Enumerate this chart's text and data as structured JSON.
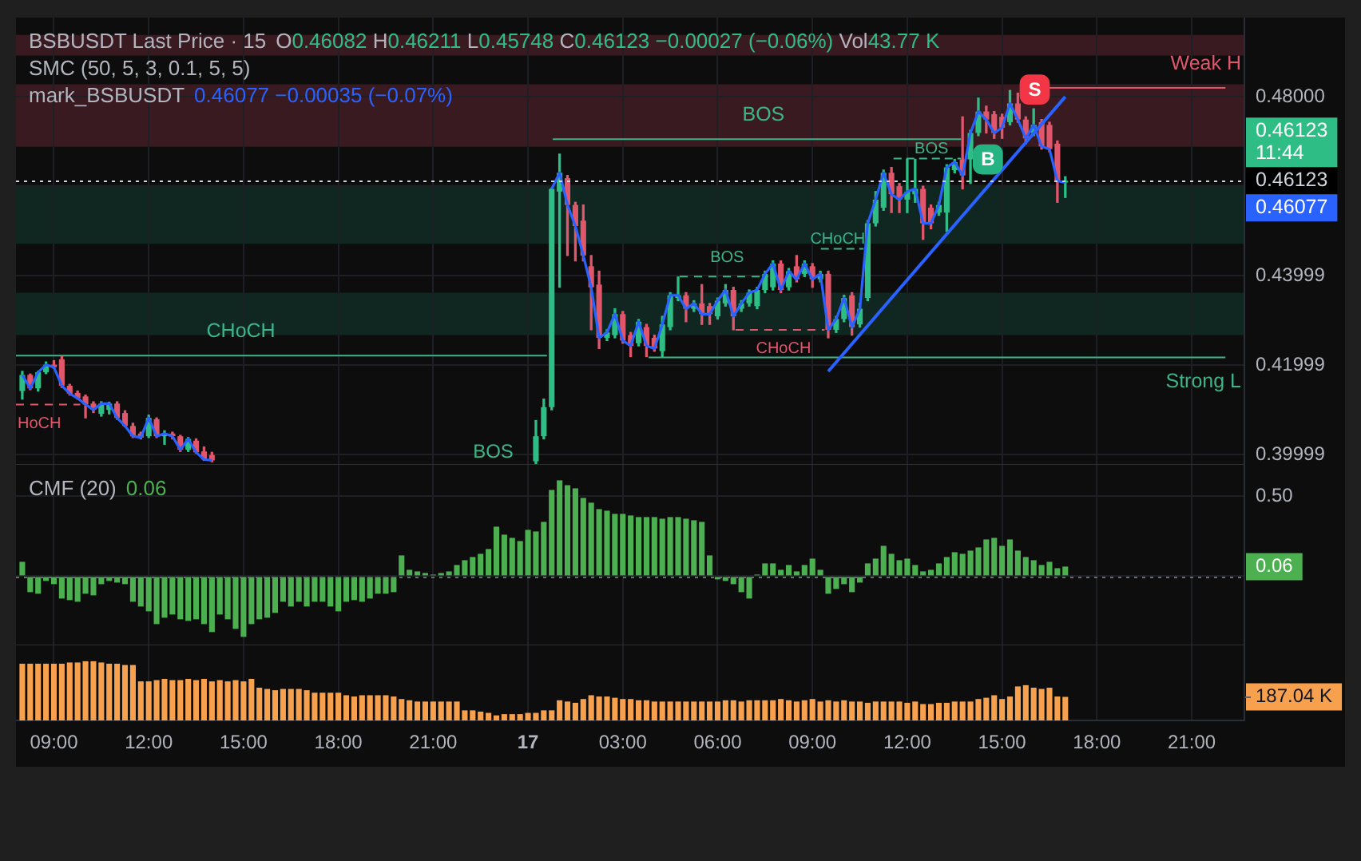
{
  "chart_data": [
    {
      "type": "candlestick",
      "title": "BSBUSDT Last Price · 15",
      "subtitle": "SMC (50, 5, 3, 0.1, 5, 5)",
      "annotations": [
        "O0.46082 H0.46211 L0.45748 C0.46123 −0.00027 (−0.06%) Vol43.77 K",
        "mark_BSBUSDT",
        "0.46077 −0.00035 (−0.07%)",
        "11:44",
        "BOS",
        "0.46123",
        "0.46077",
        {
          "text": "CHoCH",
          "x": "--06-16T14:55",
          "y": 0.4221
        },
        {
          "text": "HoCH",
          "x": "--06-16T08:29",
          "y": 0.4112
        },
        {
          "text": "BOS",
          "x": "--06-17T07:27",
          "y": 0.4705
        },
        {
          "text": "BOS",
          "x": "--06-17T12:46",
          "y": 0.4662
        },
        {
          "text": "BOS",
          "x": "--06-17T06:18",
          "y": 0.4398
        },
        {
          "text": "CHoCH",
          "x": "--06-17T08:05",
          "y": 0.4279
        },
        {
          "text": "CHoCH",
          "x": "--06-17T09:48",
          "y": 0.446
        },
        {
          "text": "Weak H",
          "x": "--06-17T21:38",
          "y": 0.482
        },
        {
          "text": "Strong L",
          "x": "--06-17T21:37",
          "y": 0.4217
        }
      ],
      "x": [
        "--06-16T08:00",
        "--06-16T08:15",
        "--06-16T08:30",
        "--06-16T08:45",
        "--06-16T09:00",
        "--06-16T09:15",
        "--06-16T09:30",
        "--06-16T09:45",
        "--06-16T10:00",
        "--06-16T10:15",
        "--06-16T10:30",
        "--06-16T10:45",
        "--06-16T11:00",
        "--06-16T11:15",
        "--06-16T11:30",
        "--06-16T11:45",
        "--06-16T12:00",
        "--06-16T12:15",
        "--06-16T12:30",
        "--06-16T12:45",
        "--06-16T13:00",
        "--06-16T13:15",
        "--06-16T13:30",
        "--06-16T13:45",
        "--06-16T14:00",
        "--06-16T14:15",
        "--06-16T14:30",
        "--06-16T14:45",
        "--06-16T15:00",
        "--06-16T15:15",
        "--06-16T15:30",
        "--06-16T15:45",
        "--06-16T16:00",
        "--06-16T16:15",
        "--06-16T16:30",
        "--06-16T16:45",
        "--06-16T17:00",
        "--06-16T17:15",
        "--06-16T17:30",
        "--06-16T17:45",
        "--06-16T18:00",
        "--06-16T18:15",
        "--06-16T18:30",
        "--06-16T18:45",
        "--06-16T19:00",
        "--06-16T19:15",
        "--06-16T19:30",
        "--06-16T19:45",
        "--06-16T20:00",
        "--06-16T20:15",
        "--06-16T20:30",
        "--06-16T20:45",
        "--06-16T21:00",
        "--06-16T21:15",
        "--06-16T21:30",
        "--06-16T21:45",
        "--06-16T22:00",
        "--06-16T22:15",
        "--06-16T22:30",
        "--06-16T22:45",
        "--06-16T23:00",
        "--06-16T23:15",
        "--06-16T23:30",
        "--06-16T23:45",
        "--06-17T00:00",
        "--06-17T00:15",
        "--06-17T00:30",
        "--06-17T00:45",
        "--06-17T01:00",
        "--06-17T01:15",
        "--06-17T01:30",
        "--06-17T01:45",
        "--06-17T02:00",
        "--06-17T02:15",
        "--06-17T02:30",
        "--06-17T02:45",
        "--06-17T03:00",
        "--06-17T03:15",
        "--06-17T03:30",
        "--06-17T03:45",
        "--06-17T04:00",
        "--06-17T04:15",
        "--06-17T04:30",
        "--06-17T04:45",
        "--06-17T05:00",
        "--06-17T05:15",
        "--06-17T05:30",
        "--06-17T05:45",
        "--06-17T06:00",
        "--06-17T06:15",
        "--06-17T06:30",
        "--06-17T06:45",
        "--06-17T07:00",
        "--06-17T07:15",
        "--06-17T07:30",
        "--06-17T07:45",
        "--06-17T08:00",
        "--06-17T08:15",
        "--06-17T08:30",
        "--06-17T08:45",
        "--06-17T09:00",
        "--06-17T09:15",
        "--06-17T09:30",
        "--06-17T09:45",
        "--06-17T10:00",
        "--06-17T10:15",
        "--06-17T10:30",
        "--06-17T10:45",
        "--06-17T11:00",
        "--06-17T11:15",
        "--06-17T11:30",
        "--06-17T11:45",
        "--06-17T12:00",
        "--06-17T12:15",
        "--06-17T12:30",
        "--06-17T12:45",
        "--06-17T13:00",
        "--06-17T13:15",
        "--06-17T13:30",
        "--06-17T13:45",
        "--06-17T14:00",
        "--06-17T14:15",
        "--06-17T14:30",
        "--06-17T14:45",
        "--06-17T15:00",
        "--06-17T15:15",
        "--06-17T15:30",
        "--06-17T15:45",
        "--06-17T16:00",
        "--06-17T16:15",
        "--06-17T16:30",
        "--06-17T16:45",
        "--06-17T17:00"
      ],
      "ohlc": [
        [
          0.4142,
          0.4186,
          0.4124,
          0.4178
        ],
        [
          0.4178,
          0.418,
          0.4145,
          0.4148
        ],
        [
          0.4148,
          0.4186,
          0.4142,
          0.4184
        ],
        [
          0.4184,
          0.4207,
          0.4181,
          0.4201
        ],
        [
          0.4201,
          0.421,
          0.4193,
          0.4195
        ],
        [
          0.4213,
          0.4219,
          0.415,
          0.4154
        ],
        [
          0.4154,
          0.4157,
          0.4133,
          0.4136
        ],
        [
          0.4138,
          0.4142,
          0.4124,
          0.4126
        ],
        [
          0.413,
          0.4133,
          0.4082,
          0.4112
        ],
        [
          0.4114,
          0.4118,
          0.4094,
          0.41
        ],
        [
          0.4091,
          0.4118,
          0.4086,
          0.4114
        ],
        [
          0.41,
          0.4117,
          0.4091,
          0.4114
        ],
        [
          0.4114,
          0.4118,
          0.4079,
          0.4082
        ],
        [
          0.4093,
          0.4098,
          0.4062,
          0.4064
        ],
        [
          0.4064,
          0.407,
          0.4038,
          0.4041
        ],
        [
          0.4047,
          0.405,
          0.4035,
          0.4038
        ],
        [
          0.4041,
          0.4088,
          0.4038,
          0.4082
        ],
        [
          0.4079,
          0.4082,
          0.4038,
          0.4041
        ],
        [
          0.4041,
          0.4053,
          0.4023,
          0.4047
        ],
        [
          0.4047,
          0.405,
          0.4035,
          0.4041
        ],
        [
          0.4041,
          0.4043,
          0.4007,
          0.4011
        ],
        [
          0.4011,
          0.4038,
          0.4007,
          0.4035
        ],
        [
          0.4031,
          0.4035,
          0.4003,
          0.4005
        ],
        [
          0.4007,
          0.4017,
          0.3987,
          0.3989
        ],
        [
          0.3999,
          0.4005,
          0.3984,
          0.3987
        ],
        null,
        null,
        null,
        null,
        null,
        null,
        null,
        null,
        null,
        null,
        null,
        null,
        null,
        null,
        null,
        null,
        null,
        null,
        null,
        null,
        null,
        null,
        null,
        null,
        null,
        null,
        null,
        null,
        null,
        null,
        null,
        null,
        null,
        null,
        null,
        null,
        null,
        null,
        null,
        null,
        [
          0.3985,
          0.4076,
          0.398,
          0.4041
        ],
        [
          0.4041,
          0.4124,
          0.4035,
          0.4106
        ],
        [
          0.4106,
          0.4596,
          0.41,
          0.4594
        ],
        [
          0.4588,
          0.4672,
          0.4374,
          0.463
        ],
        [
          0.4618,
          0.4624,
          0.4445,
          0.4558
        ],
        [
          0.4558,
          0.4564,
          0.4433,
          0.4511
        ],
        [
          0.4523,
          0.4558,
          0.4433,
          0.4445
        ],
        [
          0.4421,
          0.4445,
          0.4279,
          0.4374
        ],
        [
          0.438,
          0.441,
          0.4237,
          0.4261
        ],
        [
          0.4261,
          0.4279,
          0.4255,
          0.4273
        ],
        [
          0.4267,
          0.4326,
          0.4261,
          0.4314
        ],
        [
          0.4314,
          0.432,
          0.4249,
          0.4255
        ],
        [
          0.4267,
          0.4273,
          0.4219,
          0.4243
        ],
        [
          0.4249,
          0.4302,
          0.4243,
          0.4297
        ],
        [
          0.4285,
          0.4291,
          0.4219,
          0.4243
        ],
        [
          0.4261,
          0.4267,
          0.4231,
          0.4237
        ],
        [
          0.4231,
          0.4309,
          0.4219,
          0.4291
        ],
        [
          0.4285,
          0.4362,
          0.4279,
          0.4356
        ],
        [
          0.435,
          0.4397,
          0.4344,
          0.4356
        ],
        [
          0.4356,
          0.4362,
          0.4297,
          0.4326
        ],
        [
          0.4326,
          0.4344,
          0.432,
          0.4338
        ],
        [
          0.4338,
          0.438,
          0.4291,
          0.4314
        ],
        [
          0.4332,
          0.4338,
          0.4291,
          0.4314
        ],
        [
          0.4309,
          0.435,
          0.4303,
          0.4344
        ],
        [
          0.4338,
          0.438,
          0.4332,
          0.4368
        ],
        [
          0.4368,
          0.4374,
          0.4279,
          0.4309
        ],
        [
          0.4326,
          0.4344,
          0.432,
          0.4338
        ],
        [
          0.4338,
          0.4368,
          0.4332,
          0.4362
        ],
        [
          0.4332,
          0.4374,
          0.4326,
          0.4368
        ],
        [
          0.4368,
          0.441,
          0.4362,
          0.4404
        ],
        [
          0.4374,
          0.4433,
          0.4368,
          0.4427
        ],
        [
          0.4427,
          0.4433,
          0.4362,
          0.4368
        ],
        [
          0.4374,
          0.4416,
          0.4368,
          0.441
        ],
        [
          0.4421,
          0.4445,
          0.4386,
          0.4392
        ],
        [
          0.4404,
          0.4433,
          0.4398,
          0.4427
        ],
        [
          0.4421,
          0.4427,
          0.4374,
          0.4392
        ],
        [
          0.4392,
          0.441,
          0.4386,
          0.4404
        ],
        [
          0.4404,
          0.441,
          0.4261,
          0.4279
        ],
        [
          0.4279,
          0.4309,
          0.4273,
          0.4303
        ],
        [
          0.4303,
          0.4356,
          0.4297,
          0.435
        ],
        [
          0.4356,
          0.4362,
          0.4267,
          0.4285
        ],
        [
          0.4291,
          0.4338,
          0.4285,
          0.4326
        ],
        [
          0.435,
          0.4523,
          0.4344,
          0.4517
        ],
        [
          0.4517,
          0.4588,
          0.4511,
          0.457
        ],
        [
          0.4552,
          0.4636,
          0.4546,
          0.463
        ],
        [
          0.463,
          0.4642,
          0.4541,
          0.4582
        ],
        [
          0.46,
          0.4606,
          0.4541,
          0.457
        ],
        [
          0.457,
          0.466,
          0.4541,
          0.4588
        ],
        [
          0.4582,
          0.466,
          0.4564,
          0.4594
        ],
        [
          0.4594,
          0.46,
          0.4481,
          0.4517
        ],
        [
          0.4552,
          0.4558,
          0.4505,
          0.4517
        ],
        [
          0.4541,
          0.4564,
          0.4535,
          0.4558
        ],
        [
          0.4541,
          0.4648,
          0.4499,
          0.4642
        ],
        [
          0.4636,
          0.466,
          0.463,
          0.4654
        ],
        [
          0.466,
          0.4755,
          0.4594,
          0.4624
        ],
        [
          0.466,
          0.4725,
          0.4606,
          0.4719
        ],
        [
          0.4719,
          0.4797,
          0.4713,
          0.4767
        ],
        [
          0.4767,
          0.4779,
          0.4719,
          0.4749
        ],
        [
          0.4761,
          0.4767,
          0.4707,
          0.4719
        ],
        [
          0.4755,
          0.4761,
          0.4707,
          0.4731
        ],
        [
          0.4743,
          0.4814,
          0.4737,
          0.4785
        ],
        [
          0.4785,
          0.4808,
          0.4743,
          0.4749
        ],
        [
          0.4749,
          0.4755,
          0.4695,
          0.4707
        ],
        [
          0.4719,
          0.4773,
          0.4713,
          0.4737
        ],
        [
          0.4743,
          0.4749,
          0.4683,
          0.4689
        ],
        [
          0.4737,
          0.4743,
          0.4677,
          0.4683
        ],
        [
          0.4695,
          0.4701,
          0.4564,
          0.4612
        ],
        [
          0.46082,
          0.46211,
          0.45748,
          0.46123
        ]
      ],
      "colors": [
        "#2ebd85",
        "#e0566b",
        "#2ebd85",
        "#2ebd85",
        "#e0566b",
        "#e0566b",
        "#e0566b",
        "#e0566b",
        "#e0566b",
        "#e0566b",
        "#2ebd85",
        "#2ebd85",
        "#e0566b",
        "#e0566b",
        "#e0566b",
        "#e0566b",
        "#2ebd85",
        "#e0566b",
        "#2ebd85",
        "#e0566b",
        "#e0566b",
        "#2ebd85",
        "#e0566b",
        "#e0566b",
        "#e0566b",
        null,
        null,
        null,
        null,
        null,
        null,
        null,
        null,
        null,
        null,
        null,
        null,
        null,
        null,
        null,
        null,
        null,
        null,
        null,
        null,
        null,
        null,
        null,
        null,
        null,
        null,
        null,
        null,
        null,
        null,
        null,
        null,
        null,
        null,
        null,
        null,
        null,
        null,
        null,
        null,
        "#2ebd85",
        "#2ebd85",
        "#2ebd85",
        "#2ebd85",
        "#e0566b",
        "#e0566b",
        "#e0566b",
        "#e0566b",
        "#e0566b",
        "#2ebd85",
        "#2ebd85",
        "#e0566b",
        "#e0566b",
        "#2ebd85",
        "#e0566b",
        "#e0566b",
        "#2ebd85",
        "#2ebd85",
        "#2ebd85",
        "#e0566b",
        "#2ebd85",
        "#e0566b",
        "#e0566b",
        "#2ebd85",
        "#2ebd85",
        "#e0566b",
        "#2ebd85",
        "#2ebd85",
        "#2ebd85",
        "#2ebd85",
        "#2ebd85",
        "#e0566b",
        "#2ebd85",
        "#e0566b",
        "#2ebd85",
        "#e0566b",
        "#2ebd85",
        "#e0566b",
        "#2ebd85",
        "#2ebd85",
        "#e0566b",
        "#2ebd85",
        "#2ebd85",
        "#2ebd85",
        "#2ebd85",
        "#e0566b",
        "#e0566b",
        "#2ebd85",
        "#2ebd85",
        "#e0566b",
        "#e0566b",
        "#2ebd85",
        "#2ebd85",
        "#2ebd85",
        "#e0566b",
        "#2ebd85",
        "#2ebd85",
        "#e0566b",
        "#e0566b",
        "#e0566b",
        "#2ebd85",
        "#e0566b",
        "#e0566b",
        "#2ebd85",
        "#e0566b",
        "#e0566b",
        "#e0566b",
        "#2ebd85"
      ],
      "series": [
        {
          "type": "line",
          "x": [
            "--06-16T07:48",
            "--06-17T00:36"
          ],
          "values": [
            0.4221,
            0.4221
          ],
          "color": "#3eb489",
          "line_style": "solid"
        },
        {
          "type": "line",
          "x": [
            "--06-16T07:48",
            "--06-16T09:50"
          ],
          "values": [
            0.4112,
            0.4112
          ],
          "color": "#e0566b",
          "line_style": "dashed"
        },
        {
          "type": "line",
          "x": [
            "--06-17T00:47",
            "--06-17T13:42"
          ],
          "values": [
            0.4705,
            0.4705
          ],
          "color": "#3eb489",
          "line_style": "solid"
        },
        {
          "type": "line",
          "x": [
            "--06-17T11:34",
            "--06-17T13:42"
          ],
          "values": [
            0.4662,
            0.4662
          ],
          "color": "#3eb489",
          "line_style": "dashed"
        },
        {
          "type": "line",
          "x": [
            "--06-17T04:48",
            "--06-17T07:36"
          ],
          "values": [
            0.4398,
            0.4398
          ],
          "color": "#3eb489",
          "line_style": "dashed"
        },
        {
          "type": "line",
          "x": [
            "--06-17T06:34",
            "--06-17T09:23"
          ],
          "values": [
            0.4279,
            0.4279
          ],
          "color": "#e0566b",
          "line_style": "dashed"
        },
        {
          "type": "line",
          "x": [
            "--06-17T09:16",
            "--06-17T10:37"
          ],
          "values": [
            0.446,
            0.446
          ],
          "color": "#3eb489",
          "line_style": "dashed"
        },
        {
          "type": "line",
          "x": [
            "--06-17T16:29",
            "--06-17T22:04"
          ],
          "values": [
            0.482,
            0.482
          ],
          "color": "#e0566b",
          "line_style": "solid"
        },
        {
          "type": "line",
          "x": [
            "--06-17T03:49",
            "--06-17T22:04"
          ],
          "values": [
            0.4217,
            0.4217
          ],
          "color": "#3eb489",
          "line_style": "solid"
        },
        {
          "type": "line",
          "x": [
            "--06-17T09:30",
            "--06-17T17:00"
          ],
          "values": [
            0.4186,
            0.48
          ],
          "color": "#2962ff",
          "line_style": "solid"
        },
        {
          "type": "line",
          "color": "#2962ff",
          "values": [
            0.4178,
            0.4148,
            0.4184,
            0.4201,
            0.4195,
            0.4154,
            0.4136,
            0.4126,
            0.4112,
            0.41,
            0.4114,
            0.4114,
            0.4082,
            0.4064,
            0.4041,
            0.4038,
            0.4082,
            0.4041,
            0.4047,
            0.4041,
            0.4011,
            0.4035,
            0.4005,
            0.3989,
            0.3987,
            null,
            null,
            null,
            null,
            null,
            null,
            null,
            null,
            null,
            null,
            null,
            null,
            null,
            null,
            null,
            null,
            null,
            null,
            null,
            null,
            null,
            null,
            null,
            null,
            null,
            null,
            null,
            null,
            null,
            null,
            null,
            null,
            null,
            null,
            null,
            null,
            null,
            null,
            null,
            null,
            null,
            null,
            0.4594,
            0.463,
            0.4558,
            0.4511,
            0.4445,
            0.4374,
            0.4261,
            0.4273,
            0.4314,
            0.4255,
            0.4243,
            0.4297,
            0.4243,
            0.4237,
            0.4291,
            0.4356,
            0.4356,
            0.4326,
            0.4338,
            0.4314,
            0.4314,
            0.4344,
            0.4368,
            0.4309,
            0.4338,
            0.4362,
            0.4368,
            0.4404,
            0.4427,
            0.4368,
            0.441,
            0.4392,
            0.4427,
            0.4392,
            0.4404,
            0.4279,
            0.4303,
            0.435,
            0.4285,
            0.4326,
            0.4517,
            0.457,
            0.463,
            0.4582,
            0.457,
            0.4588,
            0.4594,
            0.4517,
            0.4517,
            0.4558,
            0.4642,
            0.4654,
            0.4624,
            0.4719,
            0.4767,
            0.4749,
            0.4719,
            0.4731,
            0.4785,
            0.4749,
            0.4707,
            0.4737,
            0.4689,
            0.4683,
            0.4612,
            0.46077
          ]
        },
        {
          "type": "scatter",
          "x": [
            "--06-17T14:33"
          ],
          "values": [
            0.466
          ],
          "color": "#26b382",
          "marker": "square",
          "value_labels": [
            "B"
          ]
        },
        {
          "type": "scatter",
          "x": [
            "--06-17T16:02"
          ],
          "values": [
            0.4816
          ],
          "color": "#f23645",
          "marker": "square",
          "value_labels": [
            "S"
          ]
        }
      ],
      "bands": [
        {
          "axis": "y",
          "from": 0.4892,
          "to": 0.4938,
          "color": "#3a1a21"
        },
        {
          "axis": "y",
          "from": 0.4688,
          "to": 0.4828,
          "color": "#3a1a21"
        },
        {
          "axis": "y",
          "from": 0.4471,
          "to": 0.4603,
          "color": "#0f2621"
        },
        {
          "axis": "y",
          "from": 0.4267,
          "to": 0.4362,
          "color": "#0f2621"
        }
      ],
      "ref_lines": [
        {
          "axis": "y",
          "value": 0.46123,
          "label": "0.46123",
          "line_style": "dotted",
          "color": "#d1d4dc"
        }
      ],
      "xlim": [
        "--06-16T07:48",
        "--06-17T22:40"
      ],
      "xticks": [
        {
          "value": "--06-16T09:00",
          "label": "09:00"
        },
        {
          "value": "--06-16T12:00",
          "label": "12:00"
        },
        {
          "value": "--06-16T15:00",
          "label": "15:00"
        },
        {
          "value": "--06-16T18:00",
          "label": "18:00"
        },
        {
          "value": "--06-16T21:00",
          "label": "21:00"
        },
        {
          "value": "--06-17",
          "label": "17"
        },
        {
          "value": "--06-17T03:00",
          "label": "03:00"
        },
        {
          "value": "--06-17T06:00",
          "label": "06:00"
        },
        {
          "value": "--06-17T09:00",
          "label": "09:00"
        },
        {
          "value": "--06-17T12:00",
          "label": "12:00"
        },
        {
          "value": "--06-17T15:00",
          "label": "15:00"
        },
        {
          "value": "--06-17T18:00",
          "label": "18:00"
        },
        {
          "value": "--06-17T21:00",
          "label": "21:00"
        }
      ],
      "ylim": [
        0.3977,
        0.4977
      ],
      "yticks": [
        {
          "value": 0.48,
          "label": "0.48000"
        },
        {
          "value": 0.46,
          "label": null
        },
        {
          "value": 0.43999,
          "label": "0.43999"
        },
        {
          "value": 0.41999,
          "label": "0.41999"
        },
        {
          "value": 0.39999,
          "label": "0.39999"
        }
      ],
      "grid": true,
      "tick_labels": "y"
    },
    {
      "type": "bar",
      "title": "CMF (20)",
      "color": "#4caf50",
      "annotations": [
        "0.06"
      ],
      "x": [
        "--06-16T08:00",
        "--06-16T08:15",
        "--06-16T08:30",
        "--06-16T08:45",
        "--06-16T09:00",
        "--06-16T09:15",
        "--06-16T09:30",
        "--06-16T09:45",
        "--06-16T10:00",
        "--06-16T10:15",
        "--06-16T10:30",
        "--06-16T10:45",
        "--06-16T11:00",
        "--06-16T11:15",
        "--06-16T11:30",
        "--06-16T11:45",
        "--06-16T12:00",
        "--06-16T12:15",
        "--06-16T12:30",
        "--06-16T12:45",
        "--06-16T13:00",
        "--06-16T13:15",
        "--06-16T13:30",
        "--06-16T13:45",
        "--06-16T14:00",
        "--06-16T14:15",
        "--06-16T14:30",
        "--06-16T14:45",
        "--06-16T15:00",
        "--06-16T15:15",
        "--06-16T15:30",
        "--06-16T15:45",
        "--06-16T16:00",
        "--06-16T16:15",
        "--06-16T16:30",
        "--06-16T16:45",
        "--06-16T17:00",
        "--06-16T17:15",
        "--06-16T17:30",
        "--06-16T17:45",
        "--06-16T18:00",
        "--06-16T18:15",
        "--06-16T18:30",
        "--06-16T18:45",
        "--06-16T19:00",
        "--06-16T19:15",
        "--06-16T19:30",
        "--06-16T19:45",
        "--06-16T20:00",
        "--06-16T20:15",
        "--06-16T20:30",
        "--06-16T20:45",
        "--06-16T21:00",
        "--06-16T21:15",
        "--06-16T21:30",
        "--06-16T21:45",
        "--06-16T22:00",
        "--06-16T22:15",
        "--06-16T22:30",
        "--06-16T22:45",
        "--06-16T23:00",
        "--06-16T23:15",
        "--06-16T23:30",
        "--06-16T23:45",
        "--06-17T00:00",
        "--06-17T00:15",
        "--06-17T00:30",
        "--06-17T00:45",
        "--06-17T01:00",
        "--06-17T01:15",
        "--06-17T01:30",
        "--06-17T01:45",
        "--06-17T02:00",
        "--06-17T02:15",
        "--06-17T02:30",
        "--06-17T02:45",
        "--06-17T03:00",
        "--06-17T03:15",
        "--06-17T03:30",
        "--06-17T03:45",
        "--06-17T04:00",
        "--06-17T04:15",
        "--06-17T04:30",
        "--06-17T04:45",
        "--06-17T05:00",
        "--06-17T05:15",
        "--06-17T05:30",
        "--06-17T05:45",
        "--06-17T06:00",
        "--06-17T06:15",
        "--06-17T06:30",
        "--06-17T06:45",
        "--06-17T07:00",
        "--06-17T07:15",
        "--06-17T07:30",
        "--06-17T07:45",
        "--06-17T08:00",
        "--06-17T08:15",
        "--06-17T08:30",
        "--06-17T08:45",
        "--06-17T09:00",
        "--06-17T09:15",
        "--06-17T09:30",
        "--06-17T09:45",
        "--06-17T10:00",
        "--06-17T10:15",
        "--06-17T10:30",
        "--06-17T10:45",
        "--06-17T11:00",
        "--06-17T11:15",
        "--06-17T11:30",
        "--06-17T11:45",
        "--06-17T12:00",
        "--06-17T12:15",
        "--06-17T12:30",
        "--06-17T12:45",
        "--06-17T13:00",
        "--06-17T13:15",
        "--06-17T13:30",
        "--06-17T13:45",
        "--06-17T14:00",
        "--06-17T14:15",
        "--06-17T14:30",
        "--06-17T14:45",
        "--06-17T15:00",
        "--06-17T15:15",
        "--06-17T15:30",
        "--06-17T15:45",
        "--06-17T16:00",
        "--06-17T16:15",
        "--06-17T16:30",
        "--06-17T16:45",
        "--06-17T17:00"
      ],
      "values": [
        0.09,
        -0.1,
        -0.11,
        -0.03,
        -0.05,
        -0.14,
        -0.15,
        -0.16,
        -0.11,
        -0.12,
        -0.05,
        -0.03,
        -0.04,
        -0.05,
        -0.16,
        -0.19,
        -0.22,
        -0.3,
        -0.26,
        -0.24,
        -0.27,
        -0.28,
        -0.27,
        -0.3,
        -0.35,
        -0.24,
        -0.27,
        -0.33,
        -0.38,
        -0.3,
        -0.27,
        -0.26,
        -0.23,
        -0.16,
        -0.19,
        -0.16,
        -0.19,
        -0.16,
        -0.16,
        -0.19,
        -0.22,
        -0.16,
        -0.15,
        -0.16,
        -0.14,
        -0.11,
        -0.11,
        -0.1,
        0.13,
        0.04,
        0.03,
        0.02,
        0.01,
        0.02,
        0.03,
        0.07,
        0.1,
        0.12,
        0.14,
        0.17,
        0.31,
        0.26,
        0.24,
        0.22,
        0.29,
        0.28,
        0.34,
        0.54,
        0.6,
        0.57,
        0.55,
        0.49,
        0.46,
        0.42,
        0.41,
        0.39,
        0.39,
        0.38,
        0.37,
        0.37,
        0.37,
        0.36,
        0.37,
        0.37,
        0.36,
        0.35,
        0.34,
        0.13,
        -0.02,
        -0.03,
        -0.05,
        -0.1,
        -0.14,
        0.01,
        0.08,
        0.08,
        0.04,
        0.07,
        0.03,
        0.07,
        0.11,
        0.04,
        -0.11,
        -0.08,
        -0.05,
        -0.1,
        -0.04,
        0.08,
        0.11,
        0.19,
        0.14,
        0.1,
        0.11,
        0.07,
        0.03,
        0.04,
        0.08,
        0.12,
        0.15,
        0.14,
        0.16,
        0.18,
        0.23,
        0.24,
        0.19,
        0.23,
        0.16,
        0.12,
        0.1,
        0.07,
        0.09,
        0.05,
        0.06
      ],
      "ref_lines": [
        {
          "axis": "y",
          "value": 0,
          "line_style": "dotted",
          "color": "#6a6d78"
        }
      ],
      "xlim": [
        "--06-16T07:48",
        "--06-17T22:40"
      ],
      "xticks": [
        {
          "value": "--06-16T09:00",
          "label": "09:00"
        },
        {
          "value": "--06-16T12:00",
          "label": "12:00"
        },
        {
          "value": "--06-16T15:00",
          "label": "15:00"
        },
        {
          "value": "--06-16T18:00",
          "label": "18:00"
        },
        {
          "value": "--06-16T21:00",
          "label": "21:00"
        },
        {
          "value": "--06-17",
          "label": "17"
        },
        {
          "value": "--06-17T03:00",
          "label": "03:00"
        },
        {
          "value": "--06-17T06:00",
          "label": "06:00"
        },
        {
          "value": "--06-17T09:00",
          "label": "09:00"
        },
        {
          "value": "--06-17T12:00",
          "label": "12:00"
        },
        {
          "value": "--06-17T15:00",
          "label": "15:00"
        },
        {
          "value": "--06-17T18:00",
          "label": "18:00"
        },
        {
          "value": "--06-17T21:00",
          "label": "21:00"
        }
      ],
      "ylim": [
        -0.433,
        0.697
      ],
      "yticks": [
        {
          "value": 0.5,
          "label": "0.50"
        },
        {
          "value": 0.06,
          "label": "0.06"
        },
        {
          "value": 0,
          "label": null
        }
      ],
      "grid": true,
      "tick_labels": "y"
    },
    {
      "type": "bar",
      "color": "#f7a14f",
      "x": [
        "--06-16T08:00",
        "--06-16T08:15",
        "--06-16T08:30",
        "--06-16T08:45",
        "--06-16T09:00",
        "--06-16T09:15",
        "--06-16T09:30",
        "--06-16T09:45",
        "--06-16T10:00",
        "--06-16T10:15",
        "--06-16T10:30",
        "--06-16T10:45",
        "--06-16T11:00",
        "--06-16T11:15",
        "--06-16T11:30",
        "--06-16T11:45",
        "--06-16T12:00",
        "--06-16T12:15",
        "--06-16T12:30",
        "--06-16T12:45",
        "--06-16T13:00",
        "--06-16T13:15",
        "--06-16T13:30",
        "--06-16T13:45",
        "--06-16T14:00",
        "--06-16T14:15",
        "--06-16T14:30",
        "--06-16T14:45",
        "--06-16T15:00",
        "--06-16T15:15",
        "--06-16T15:30",
        "--06-16T15:45",
        "--06-16T16:00",
        "--06-16T16:15",
        "--06-16T16:30",
        "--06-16T16:45",
        "--06-16T17:00",
        "--06-16T17:15",
        "--06-16T17:30",
        "--06-16T17:45",
        "--06-16T18:00",
        "--06-16T18:15",
        "--06-16T18:30",
        "--06-16T18:45",
        "--06-16T19:00",
        "--06-16T19:15",
        "--06-16T19:30",
        "--06-16T19:45",
        "--06-16T20:00",
        "--06-16T20:15",
        "--06-16T20:30",
        "--06-16T20:45",
        "--06-16T21:00",
        "--06-16T21:15",
        "--06-16T21:30",
        "--06-16T21:45",
        "--06-16T22:00",
        "--06-16T22:15",
        "--06-16T22:30",
        "--06-16T22:45",
        "--06-16T23:00",
        "--06-16T23:15",
        "--06-16T23:30",
        "--06-16T23:45",
        "--06-17T00:00",
        "--06-17T00:15",
        "--06-17T00:30",
        "--06-17T00:45",
        "--06-17T01:00",
        "--06-17T01:15",
        "--06-17T01:30",
        "--06-17T01:45",
        "--06-17T02:00",
        "--06-17T02:15",
        "--06-17T02:30",
        "--06-17T02:45",
        "--06-17T03:00",
        "--06-17T03:15",
        "--06-17T03:30",
        "--06-17T03:45",
        "--06-17T04:00",
        "--06-17T04:15",
        "--06-17T04:30",
        "--06-17T04:45",
        "--06-17T05:00",
        "--06-17T05:15",
        "--06-17T05:30",
        "--06-17T05:45",
        "--06-17T06:00",
        "--06-17T06:15",
        "--06-17T06:30",
        "--06-17T06:45",
        "--06-17T07:00",
        "--06-17T07:15",
        "--06-17T07:30",
        "--06-17T07:45",
        "--06-17T08:00",
        "--06-17T08:15",
        "--06-17T08:30",
        "--06-17T08:45",
        "--06-17T09:00",
        "--06-17T09:15",
        "--06-17T09:30",
        "--06-17T09:45",
        "--06-17T10:00",
        "--06-17T10:15",
        "--06-17T10:30",
        "--06-17T10:45",
        "--06-17T11:00",
        "--06-17T11:15",
        "--06-17T11:30",
        "--06-17T11:45",
        "--06-17T12:00",
        "--06-17T12:15",
        "--06-17T12:30",
        "--06-17T12:45",
        "--06-17T13:00",
        "--06-17T13:15",
        "--06-17T13:30",
        "--06-17T13:45",
        "--06-17T14:00",
        "--06-17T14:15",
        "--06-17T14:30",
        "--06-17T14:45",
        "--06-17T15:00",
        "--06-17T15:15",
        "--06-17T15:30",
        "--06-17T15:45",
        "--06-17T16:00",
        "--06-17T16:15",
        "--06-17T16:30",
        "--06-17T16:45",
        "--06-17T17:00"
      ],
      "values": [
        450,
        450,
        450,
        450,
        450,
        450,
        460,
        460,
        470,
        470,
        460,
        450,
        450,
        440,
        440,
        310,
        310,
        320,
        330,
        320,
        320,
        330,
        320,
        330,
        310,
        320,
        310,
        320,
        310,
        330,
        260,
        250,
        240,
        250,
        250,
        250,
        240,
        220,
        220,
        220,
        220,
        200,
        190,
        200,
        200,
        200,
        200,
        190,
        170,
        160,
        150,
        150,
        150,
        150,
        150,
        150,
        80,
        80,
        70,
        60,
        40,
        50,
        50,
        50,
        60,
        60,
        80,
        80,
        160,
        150,
        140,
        170,
        200,
        190,
        190,
        180,
        170,
        170,
        160,
        160,
        150,
        150,
        150,
        150,
        150,
        150,
        150,
        150,
        150,
        160,
        160,
        150,
        160,
        160,
        160,
        160,
        170,
        160,
        150,
        160,
        170,
        150,
        160,
        150,
        160,
        150,
        150,
        140,
        150,
        150,
        150,
        150,
        140,
        150,
        130,
        130,
        140,
        140,
        150,
        150,
        150,
        170,
        180,
        200,
        170,
        190,
        270,
        280,
        260,
        250,
        260,
        190,
        187.04
      ],
      "xlim": [
        "--06-16T07:48",
        "--06-17T22:40"
      ],
      "xticks": [
        {
          "value": "--06-16T09:00",
          "label": "09:00"
        },
        {
          "value": "--06-16T12:00",
          "label": "12:00"
        },
        {
          "value": "--06-16T15:00",
          "label": "15:00"
        },
        {
          "value": "--06-16T18:00",
          "label": "18:00"
        },
        {
          "value": "--06-16T21:00",
          "label": "21:00"
        },
        {
          "value": "--06-17",
          "label": "17"
        },
        {
          "value": "--06-17T03:00",
          "label": "03:00"
        },
        {
          "value": "--06-17T06:00",
          "label": "06:00"
        },
        {
          "value": "--06-17T09:00",
          "label": "09:00"
        },
        {
          "value": "--06-17T12:00",
          "label": "12:00"
        },
        {
          "value": "--06-17T15:00",
          "label": "15:00"
        },
        {
          "value": "--06-17T18:00",
          "label": "18:00"
        },
        {
          "value": "--06-17T21:00",
          "label": "21:00"
        }
      ],
      "ylim": [
        0,
        596
      ],
      "yticks": [
        {
          "value": 187.04,
          "label": "187.04 K"
        }
      ],
      "grid": "x"
    }
  ]
}
